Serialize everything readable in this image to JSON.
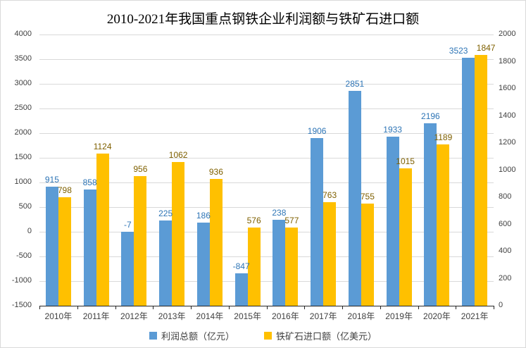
{
  "chart_data": {
    "type": "bar",
    "title": "2010-2021年我国重点钢铁企业利润额与铁矿石进口额",
    "categories": [
      "2010年",
      "2011年",
      "2012年",
      "2013年",
      "2014年",
      "2015年",
      "2016年",
      "2017年",
      "2018年",
      "2019年",
      "2020年",
      "2021年"
    ],
    "series": [
      {
        "name": "利润总额（亿元）",
        "axis": "left",
        "color": "#5B9BD5",
        "label_color": "#2E75B6",
        "values": [
          915,
          858,
          -7,
          225,
          186,
          -847,
          238,
          1906,
          2851,
          1933,
          2196,
          3523
        ]
      },
      {
        "name": "铁矿石进口额（亿美元）",
        "axis": "right",
        "color": "#FFC000",
        "label_color": "#7F6000",
        "values": [
          798,
          1124,
          956,
          1062,
          936,
          576,
          577,
          763,
          755,
          1015,
          1189,
          1847
        ]
      }
    ],
    "left_axis": {
      "min": -1500,
      "max": 4000,
      "step": 500,
      "ticks": [
        4000,
        3500,
        3000,
        2500,
        2000,
        1500,
        1000,
        500,
        0,
        -500,
        -1000,
        -1500
      ]
    },
    "right_axis": {
      "min": 0,
      "max": 2000,
      "step": 200,
      "ticks": [
        2000,
        1800,
        1600,
        1400,
        1200,
        1000,
        800,
        600,
        400,
        200,
        0
      ]
    },
    "grid": true,
    "legend_position": "bottom",
    "bar_baseline": "plot_bottom",
    "data_labels": true
  },
  "colors": {
    "gridline": "#D9D9D9",
    "axis_line": "#262626",
    "axis_text": "#404040",
    "title_text": "#000000",
    "background": "#FFFFFF"
  }
}
